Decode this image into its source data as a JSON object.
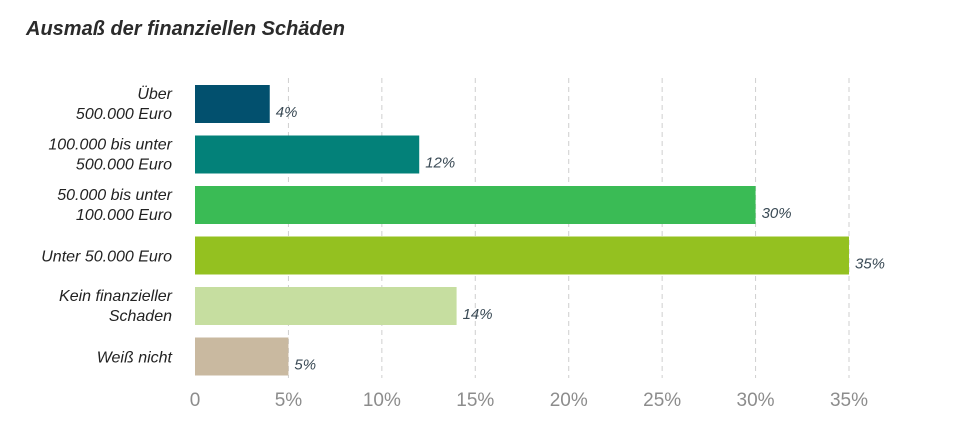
{
  "chart_data": {
    "type": "bar",
    "orientation": "horizontal",
    "title": "Ausmaß der finanziellen Schäden",
    "categories": [
      [
        "Über",
        "500.000 Euro"
      ],
      [
        "100.000 bis unter",
        "500.000 Euro"
      ],
      [
        "50.000 bis  unter",
        "100.000 Euro"
      ],
      [
        "Unter 50.000 Euro"
      ],
      [
        "Kein finanzieller",
        "Schaden"
      ],
      [
        "Weiß nicht"
      ]
    ],
    "values": [
      4,
      12,
      30,
      35,
      14,
      5
    ],
    "value_labels": [
      "4%",
      "12%",
      "30%",
      "35%",
      "14%",
      "5%"
    ],
    "colors": [
      "#02506e",
      "#038179",
      "#3abb55",
      "#94c120",
      "#c6dea0",
      "#c9b9a0"
    ],
    "xlim": [
      0,
      35
    ],
    "x_ticks": [
      0,
      5,
      10,
      15,
      20,
      25,
      30,
      35
    ],
    "x_tick_labels": [
      "0",
      "5%",
      "10%",
      "15%",
      "20%",
      "25%",
      "30%",
      "35%"
    ],
    "grid": "vertical-dashed",
    "xlabel": "",
    "ylabel": ""
  }
}
